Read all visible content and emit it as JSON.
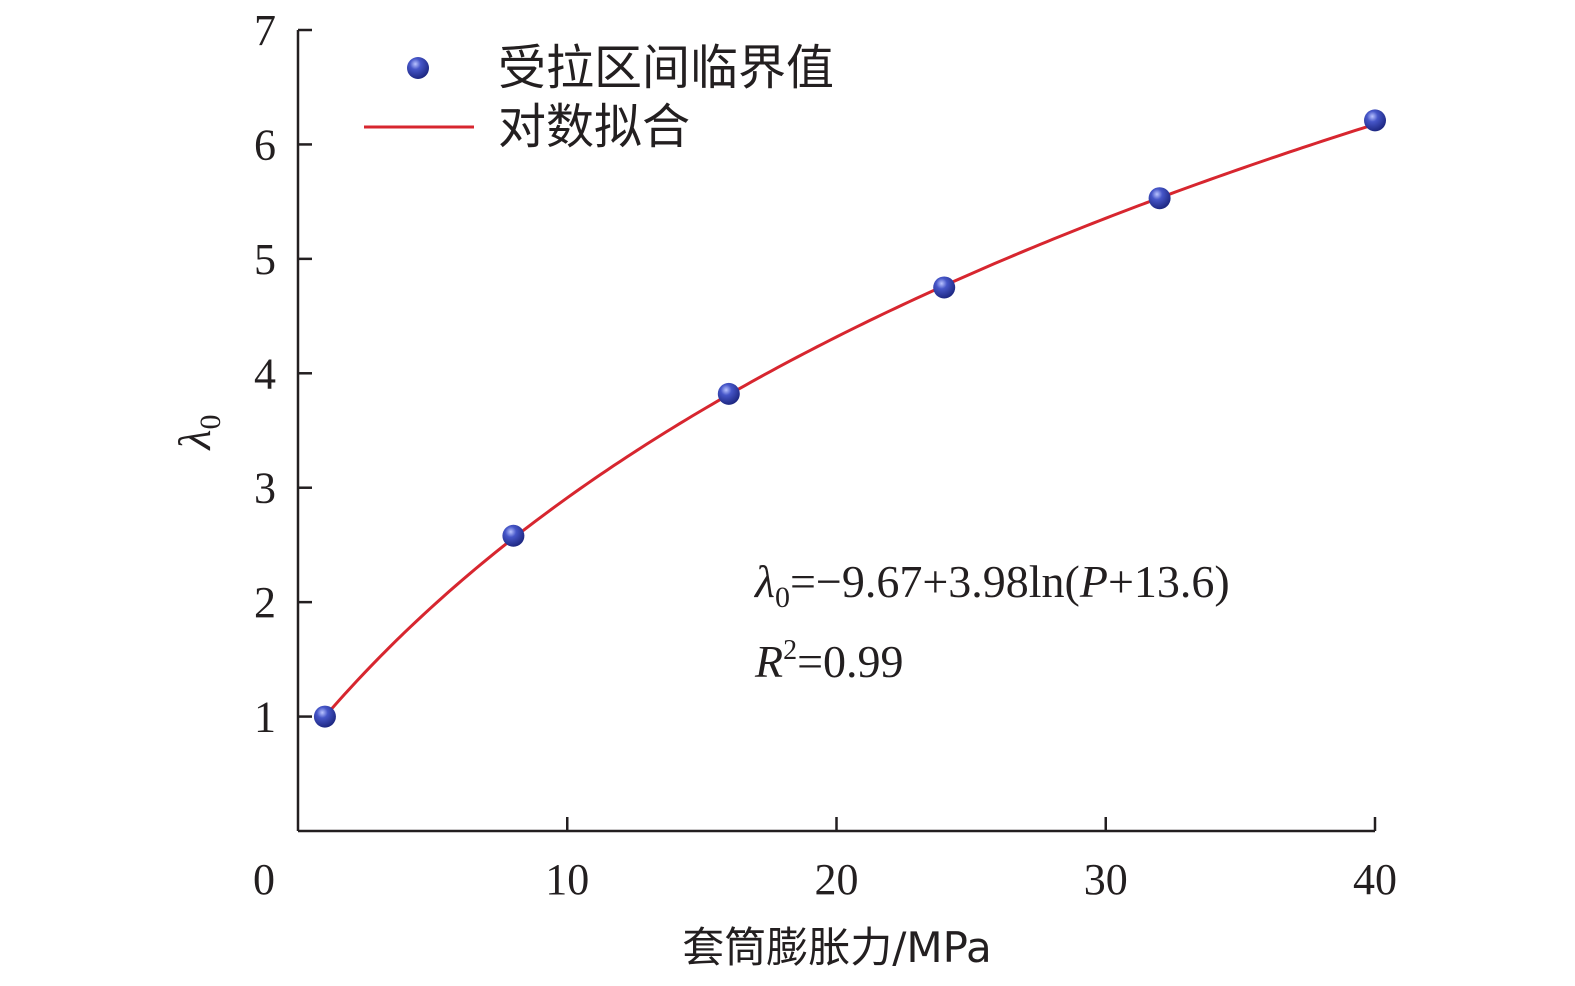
{
  "chart_data": {
    "type": "scatter",
    "title": "",
    "xlabel": "套筒膨胀力/MPa",
    "ylabel": "λ",
    "ylabel_sub": "0",
    "xlim": [
      0,
      40
    ],
    "ylim": [
      0,
      7
    ],
    "x_ticks": [
      0,
      10,
      20,
      30,
      40
    ],
    "y_ticks": [
      1,
      2,
      3,
      4,
      5,
      6,
      7
    ],
    "grid": false,
    "legend_position": "top-left",
    "series": [
      {
        "name": "受拉区间临界值",
        "kind": "scatter",
        "color": "#2a3a9e",
        "x": [
          1,
          8,
          16,
          24,
          32,
          40
        ],
        "y": [
          1.0,
          2.58,
          3.82,
          4.75,
          5.53,
          6.21
        ]
      },
      {
        "name": "对数拟合",
        "kind": "line",
        "color": "#d7262f",
        "fit": {
          "a": -9.67,
          "b": 3.98,
          "c": 13.6,
          "x_range": [
            1,
            40
          ]
        }
      }
    ],
    "annotations": {
      "equation": {
        "lhs": "λ",
        "lhs_sub": "0",
        "rhs_a": "=−9.67+3.98ln(",
        "var": "P",
        "rhs_b": "+13.6)"
      },
      "r2": {
        "var": "R",
        "sup": "2",
        "rhs": "=0.99"
      }
    }
  }
}
